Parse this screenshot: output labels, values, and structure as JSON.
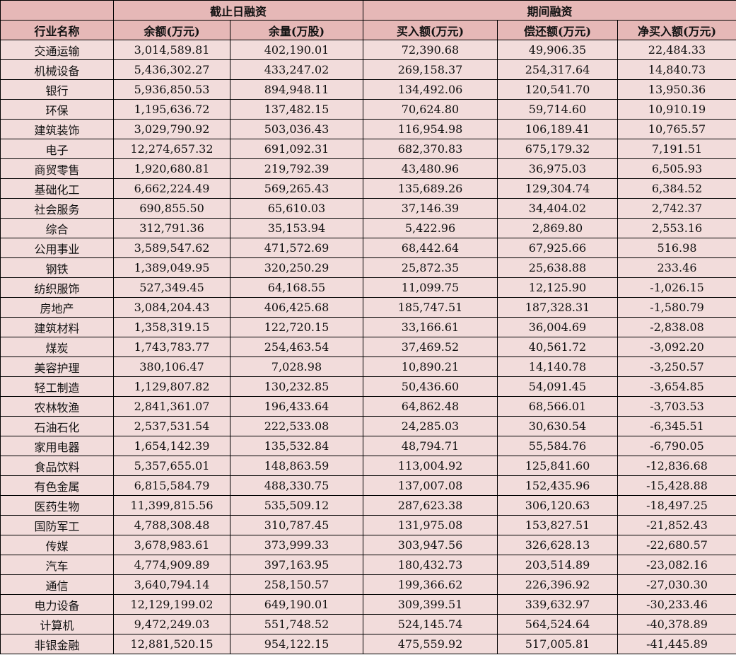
{
  "header": {
    "group1": "截止日融资",
    "group2": "期间融资",
    "columns": [
      "行业名称",
      "余额(万元)",
      "余量(万股)",
      "买入额(万元)",
      "偿还额(万元)",
      "净买入额(万元)"
    ]
  },
  "colors": {
    "header_bg": "#e6b8b7",
    "body_bg": "#f2dcdb"
  },
  "rows": [
    [
      "交通运输",
      "3,014,589.81",
      "402,190.01",
      "72,390.68",
      "49,906.35",
      "22,484.33"
    ],
    [
      "机械设备",
      "5,436,302.27",
      "433,247.02",
      "269,158.37",
      "254,317.64",
      "14,840.73"
    ],
    [
      "银行",
      "5,936,850.53",
      "894,948.11",
      "134,492.06",
      "120,541.70",
      "13,950.36"
    ],
    [
      "环保",
      "1,195,636.72",
      "137,482.15",
      "70,624.80",
      "59,714.60",
      "10,910.19"
    ],
    [
      "建筑装饰",
      "3,029,790.92",
      "503,036.43",
      "116,954.98",
      "106,189.41",
      "10,765.57"
    ],
    [
      "电子",
      "12,274,657.32",
      "691,092.31",
      "682,370.83",
      "675,179.32",
      "7,191.51"
    ],
    [
      "商贸零售",
      "1,920,680.81",
      "219,792.39",
      "43,480.96",
      "36,975.03",
      "6,505.93"
    ],
    [
      "基础化工",
      "6,662,224.49",
      "569,265.43",
      "135,689.26",
      "129,304.74",
      "6,384.52"
    ],
    [
      "社会服务",
      "690,855.50",
      "65,610.03",
      "37,146.39",
      "34,404.02",
      "2,742.37"
    ],
    [
      "综合",
      "312,791.36",
      "35,153.94",
      "5,422.96",
      "2,869.80",
      "2,553.16"
    ],
    [
      "公用事业",
      "3,589,547.62",
      "471,572.69",
      "68,442.64",
      "67,925.66",
      "516.98"
    ],
    [
      "钢铁",
      "1,389,049.95",
      "320,250.29",
      "25,872.35",
      "25,638.88",
      "233.46"
    ],
    [
      "纺织服饰",
      "527,349.45",
      "64,168.55",
      "11,099.75",
      "12,125.90",
      "-1,026.15"
    ],
    [
      "房地产",
      "3,084,204.43",
      "406,425.68",
      "185,747.51",
      "187,328.31",
      "-1,580.79"
    ],
    [
      "建筑材料",
      "1,358,319.15",
      "122,720.15",
      "33,166.61",
      "36,004.69",
      "-2,838.08"
    ],
    [
      "煤炭",
      "1,743,783.77",
      "254,463.54",
      "37,469.52",
      "40,561.72",
      "-3,092.20"
    ],
    [
      "美容护理",
      "380,106.47",
      "7,028.98",
      "10,890.21",
      "14,140.78",
      "-3,250.57"
    ],
    [
      "轻工制造",
      "1,129,807.82",
      "130,232.85",
      "50,436.60",
      "54,091.45",
      "-3,654.85"
    ],
    [
      "农林牧渔",
      "2,841,361.07",
      "196,433.64",
      "64,862.48",
      "68,566.01",
      "-3,703.53"
    ],
    [
      "石油石化",
      "2,537,531.54",
      "222,533.08",
      "24,285.03",
      "30,630.54",
      "-6,345.51"
    ],
    [
      "家用电器",
      "1,654,142.39",
      "135,532.84",
      "48,794.71",
      "55,584.76",
      "-6,790.05"
    ],
    [
      "食品饮料",
      "5,357,655.01",
      "148,863.59",
      "113,004.92",
      "125,841.60",
      "-12,836.68"
    ],
    [
      "有色金属",
      "6,815,584.79",
      "488,330.75",
      "137,007.08",
      "152,435.96",
      "-15,428.88"
    ],
    [
      "医药生物",
      "11,399,815.56",
      "535,509.12",
      "287,623.38",
      "306,120.63",
      "-18,497.25"
    ],
    [
      "国防军工",
      "4,788,308.48",
      "310,787.45",
      "131,975.08",
      "153,827.51",
      "-21,852.43"
    ],
    [
      "传媒",
      "3,678,983.61",
      "373,999.33",
      "303,947.56",
      "326,628.13",
      "-22,680.57"
    ],
    [
      "汽车",
      "4,774,909.89",
      "397,163.95",
      "180,432.73",
      "203,514.89",
      "-23,082.16"
    ],
    [
      "通信",
      "3,640,794.14",
      "258,150.57",
      "199,366.62",
      "226,396.92",
      "-27,030.30"
    ],
    [
      "电力设备",
      "12,129,199.02",
      "649,190.01",
      "309,399.51",
      "339,632.97",
      "-30,233.46"
    ],
    [
      "计算机",
      "9,472,249.03",
      "551,748.52",
      "524,145.74",
      "564,524.64",
      "-40,378.89"
    ],
    [
      "非银金融",
      "12,881,520.15",
      "954,122.15",
      "475,559.92",
      "517,005.81",
      "-41,445.89"
    ]
  ]
}
